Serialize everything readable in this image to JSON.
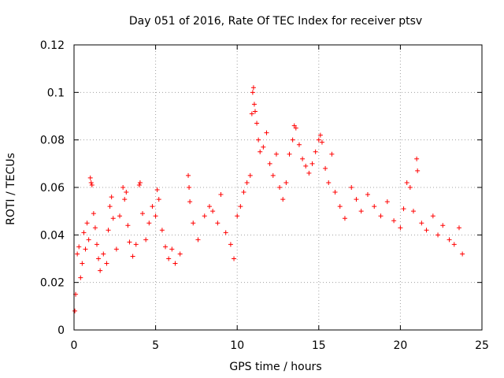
{
  "chart_data": {
    "type": "scatter",
    "title": "Day 051 of 2016, Rate Of TEC Index for receiver ptsv",
    "xlabel": "GPS time / hours",
    "ylabel": "ROTI / TECUs",
    "xlim": [
      0,
      25
    ],
    "ylim": [
      0,
      0.12
    ],
    "xticks": [
      0,
      5,
      10,
      15,
      20,
      25
    ],
    "xtick_labels": [
      "0",
      "5",
      "10",
      "15",
      "20",
      "25"
    ],
    "yticks": [
      0,
      0.02,
      0.04,
      0.06,
      0.08,
      0.1,
      0.12
    ],
    "ytick_labels": [
      "0",
      "0.02",
      "0.04",
      "0.06",
      "0.08",
      "0.1",
      "0.12"
    ],
    "grid": true,
    "marker": "+",
    "color": "#ff0000",
    "series": [
      {
        "name": "ROTI",
        "points": [
          [
            0.05,
            0.008
          ],
          [
            0.1,
            0.015
          ],
          [
            0.2,
            0.032
          ],
          [
            0.3,
            0.035
          ],
          [
            0.4,
            0.022
          ],
          [
            0.5,
            0.028
          ],
          [
            0.6,
            0.041
          ],
          [
            0.7,
            0.034
          ],
          [
            0.8,
            0.045
          ],
          [
            0.9,
            0.038
          ],
          [
            1.0,
            0.064
          ],
          [
            1.05,
            0.062
          ],
          [
            1.1,
            0.061
          ],
          [
            1.2,
            0.049
          ],
          [
            1.3,
            0.043
          ],
          [
            1.4,
            0.036
          ],
          [
            1.5,
            0.03
          ],
          [
            1.6,
            0.025
          ],
          [
            1.8,
            0.032
          ],
          [
            2.0,
            0.028
          ],
          [
            2.1,
            0.042
          ],
          [
            2.2,
            0.052
          ],
          [
            2.3,
            0.056
          ],
          [
            2.4,
            0.047
          ],
          [
            2.6,
            0.034
          ],
          [
            2.8,
            0.048
          ],
          [
            3.0,
            0.06
          ],
          [
            3.1,
            0.055
          ],
          [
            3.2,
            0.058
          ],
          [
            3.3,
            0.044
          ],
          [
            3.4,
            0.037
          ],
          [
            3.6,
            0.031
          ],
          [
            3.8,
            0.036
          ],
          [
            4.0,
            0.061
          ],
          [
            4.05,
            0.062
          ],
          [
            4.2,
            0.049
          ],
          [
            4.4,
            0.038
          ],
          [
            4.6,
            0.045
          ],
          [
            4.8,
            0.052
          ],
          [
            5.0,
            0.048
          ],
          [
            5.1,
            0.059
          ],
          [
            5.2,
            0.055
          ],
          [
            5.4,
            0.042
          ],
          [
            5.6,
            0.035
          ],
          [
            5.8,
            0.03
          ],
          [
            6.0,
            0.034
          ],
          [
            6.2,
            0.028
          ],
          [
            6.5,
            0.032
          ],
          [
            7.0,
            0.065
          ],
          [
            7.05,
            0.06
          ],
          [
            7.1,
            0.054
          ],
          [
            7.3,
            0.045
          ],
          [
            7.6,
            0.038
          ],
          [
            8.0,
            0.048
          ],
          [
            8.3,
            0.052
          ],
          [
            8.5,
            0.05
          ],
          [
            8.8,
            0.045
          ],
          [
            9.0,
            0.057
          ],
          [
            9.3,
            0.041
          ],
          [
            9.6,
            0.036
          ],
          [
            9.8,
            0.03
          ],
          [
            10.0,
            0.048
          ],
          [
            10.2,
            0.052
          ],
          [
            10.4,
            0.058
          ],
          [
            10.6,
            0.062
          ],
          [
            10.8,
            0.065
          ],
          [
            10.9,
            0.091
          ],
          [
            10.95,
            0.1
          ],
          [
            11.0,
            0.102
          ],
          [
            11.05,
            0.095
          ],
          [
            11.1,
            0.092
          ],
          [
            11.2,
            0.087
          ],
          [
            11.3,
            0.08
          ],
          [
            11.4,
            0.075
          ],
          [
            11.6,
            0.077
          ],
          [
            11.8,
            0.083
          ],
          [
            12.0,
            0.07
          ],
          [
            12.2,
            0.065
          ],
          [
            12.4,
            0.074
          ],
          [
            12.6,
            0.06
          ],
          [
            12.8,
            0.055
          ],
          [
            13.0,
            0.062
          ],
          [
            13.2,
            0.074
          ],
          [
            13.4,
            0.08
          ],
          [
            13.5,
            0.086
          ],
          [
            13.6,
            0.085
          ],
          [
            13.8,
            0.078
          ],
          [
            14.0,
            0.072
          ],
          [
            14.2,
            0.069
          ],
          [
            14.4,
            0.066
          ],
          [
            14.6,
            0.07
          ],
          [
            14.8,
            0.075
          ],
          [
            15.0,
            0.08
          ],
          [
            15.1,
            0.082
          ],
          [
            15.2,
            0.079
          ],
          [
            15.4,
            0.068
          ],
          [
            15.6,
            0.062
          ],
          [
            15.8,
            0.074
          ],
          [
            16.0,
            0.058
          ],
          [
            16.3,
            0.052
          ],
          [
            16.6,
            0.047
          ],
          [
            17.0,
            0.06
          ],
          [
            17.3,
            0.055
          ],
          [
            17.6,
            0.05
          ],
          [
            18.0,
            0.057
          ],
          [
            18.4,
            0.052
          ],
          [
            18.8,
            0.048
          ],
          [
            19.2,
            0.054
          ],
          [
            19.6,
            0.046
          ],
          [
            20.0,
            0.043
          ],
          [
            20.2,
            0.051
          ],
          [
            20.4,
            0.062
          ],
          [
            20.6,
            0.06
          ],
          [
            20.8,
            0.05
          ],
          [
            21.0,
            0.072
          ],
          [
            21.05,
            0.067
          ],
          [
            21.3,
            0.045
          ],
          [
            21.6,
            0.042
          ],
          [
            22.0,
            0.048
          ],
          [
            22.3,
            0.04
          ],
          [
            22.6,
            0.044
          ],
          [
            23.0,
            0.038
          ],
          [
            23.3,
            0.036
          ],
          [
            23.6,
            0.043
          ],
          [
            23.8,
            0.032
          ]
        ]
      }
    ]
  }
}
